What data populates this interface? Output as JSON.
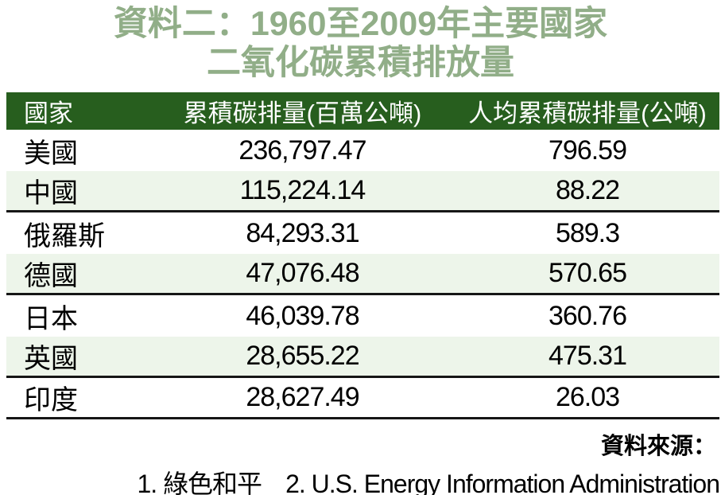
{
  "title": {
    "line1": "資料二：1960至2009年主要國家",
    "line2": "二氧化碳累積排放量"
  },
  "colors": {
    "title_green": "#91AE88",
    "header_green": "#275E1E",
    "row_alt_green": "#EDF5EA",
    "divider_black": "#161616"
  },
  "table": {
    "columns": {
      "country": "國家",
      "cumulative": "累積碳排量(百萬公噸)",
      "per_capita": "人均累積碳排量(公噸)"
    },
    "rows": [
      {
        "country": "美國",
        "cumulative": "236,797.47",
        "per_capita": "796.59"
      },
      {
        "country": "中國",
        "cumulative": "115,224.14",
        "per_capita": "88.22"
      },
      {
        "country": "俄羅斯",
        "cumulative": "84,293.31",
        "per_capita": "589.3"
      },
      {
        "country": "德國",
        "cumulative": "47,076.48",
        "per_capita": "570.65"
      },
      {
        "country": "日本",
        "cumulative": "46,039.78",
        "per_capita": "360.76"
      },
      {
        "country": "英國",
        "cumulative": "28,655.22",
        "per_capita": "475.31"
      },
      {
        "country": "印度",
        "cumulative": "28,627.49",
        "per_capita": "26.03"
      }
    ]
  },
  "source": {
    "label": "資料來源：",
    "items": [
      "1. 綠色和平",
      "2. U.S. Energy Information Administration"
    ]
  },
  "chart_data": {
    "type": "table",
    "title": "資料二：1960至2009年主要國家二氧化碳累積排放量",
    "columns": [
      "國家",
      "累積碳排量(百萬公噸)",
      "人均累積碳排量(公噸)"
    ],
    "rows": [
      [
        "美國",
        236797.47,
        796.59
      ],
      [
        "中國",
        115224.14,
        88.22
      ],
      [
        "俄羅斯",
        84293.31,
        589.3
      ],
      [
        "德國",
        47076.48,
        570.65
      ],
      [
        "日本",
        46039.78,
        360.76
      ],
      [
        "英國",
        28655.22,
        475.31
      ],
      [
        "印度",
        28627.49,
        26.03
      ]
    ],
    "sources": [
      "綠色和平",
      "U.S. Energy Information Administration"
    ],
    "layout_hints": {
      "header_background": "#275E1E",
      "zebra_rows": [
        1,
        3,
        5
      ],
      "divider_below_rows": [
        1,
        3,
        5,
        6
      ]
    }
  }
}
